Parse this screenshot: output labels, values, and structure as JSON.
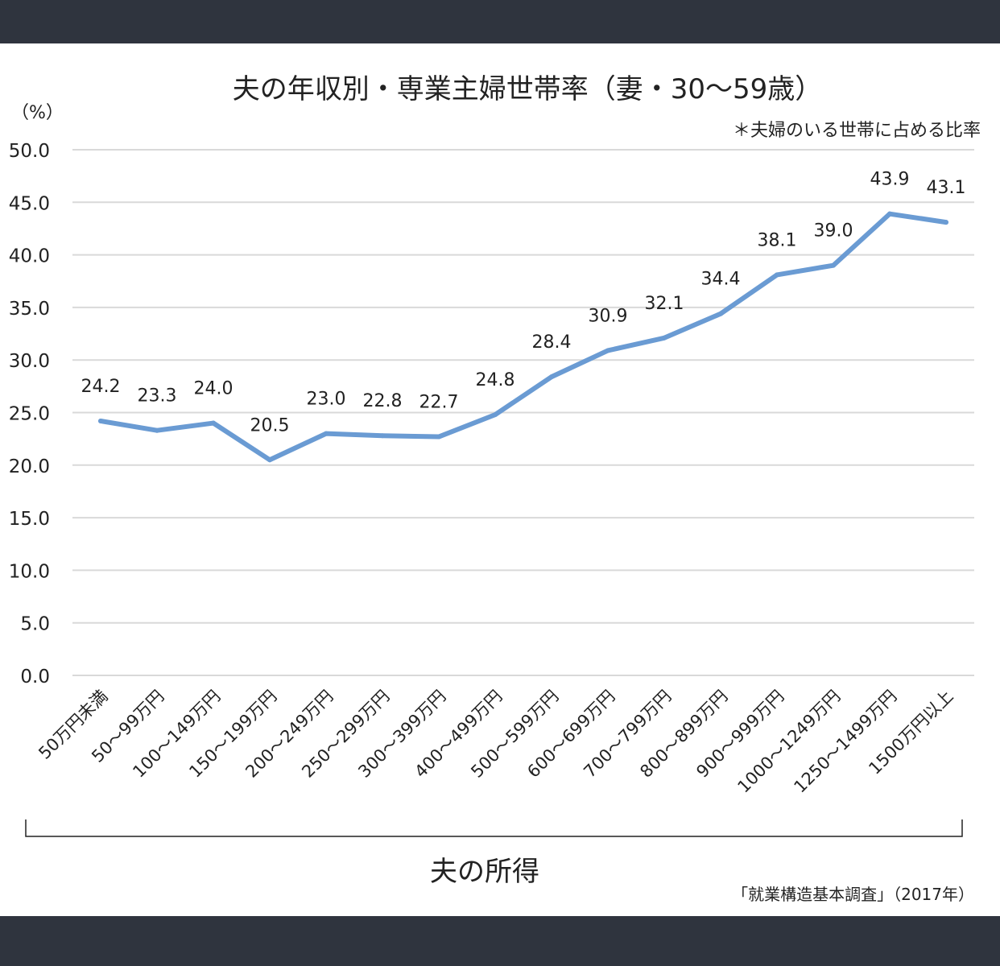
{
  "chart_data": {
    "type": "line",
    "title": "夫の年収別・専業主婦世帯率（妻・30～59歳）",
    "note": "＊夫婦のいる世帯に占める比率",
    "y_unit": "（%）",
    "xlabel": "夫の所得",
    "source": "「就業構造基本調査」（2017年）",
    "ylim": [
      0,
      50
    ],
    "yticks": [
      "50.0",
      "45.0",
      "40.0",
      "35.0",
      "30.0",
      "25.0",
      "20.0",
      "15.0",
      "10.0",
      "5.0",
      "0.0"
    ],
    "grid": true,
    "categories": [
      "50万円未満",
      "50～99万円",
      "100～149万円",
      "150～199万円",
      "200～249万円",
      "250～299万円",
      "300～399万円",
      "400～499万円",
      "500～599万円",
      "600～699万円",
      "700～799万円",
      "800～899万円",
      "900～999万円",
      "1000～1249万円",
      "1250～1499万円",
      "1500万円以上"
    ],
    "values": [
      24.2,
      23.3,
      24.0,
      20.5,
      23.0,
      22.8,
      22.7,
      24.8,
      28.4,
      30.9,
      32.1,
      34.4,
      38.1,
      39.0,
      43.9,
      43.1
    ],
    "data_labels": [
      "24.2",
      "23.3",
      "24.0",
      "20.5",
      "23.0",
      "22.8",
      "22.7",
      "24.8",
      "28.4",
      "30.9",
      "32.1",
      "34.4",
      "38.1",
      "39.0",
      "43.9",
      "43.1"
    ],
    "line_color": "#6a9bd3",
    "grid_color": "#d9d9d9"
  }
}
